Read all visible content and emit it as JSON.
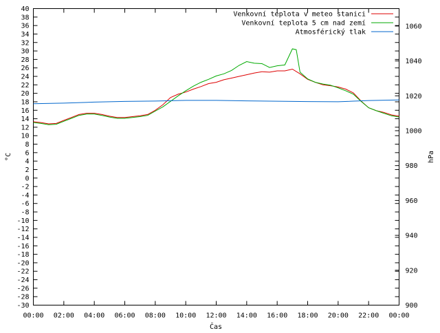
{
  "chart_data": {
    "type": "line",
    "title": "",
    "xlabel": "Čas",
    "ylabel": "°C",
    "y2label": "hPa",
    "xlim": [
      0,
      24
    ],
    "ylim": [
      -30,
      40
    ],
    "y2lim": [
      900,
      1070
    ],
    "x_ticks": [
      "00:00",
      "02:00",
      "04:00",
      "06:00",
      "08:00",
      "10:00",
      "12:00",
      "14:00",
      "16:00",
      "18:00",
      "20:00",
      "22:00",
      "00:00"
    ],
    "y_ticks": [
      40,
      38,
      36,
      34,
      32,
      30,
      28,
      26,
      24,
      22,
      20,
      18,
      16,
      14,
      12,
      10,
      8,
      6,
      4,
      2,
      0,
      -2,
      -4,
      -6,
      -8,
      -10,
      -12,
      -14,
      -16,
      -18,
      -20,
      -22,
      -24,
      -26,
      -28,
      -30
    ],
    "y2_ticks": [
      1060,
      1040,
      1020,
      1000,
      980,
      960,
      940,
      920,
      900
    ],
    "grid": false,
    "legend_position": "top-right",
    "series": [
      {
        "name": "Venkovní teplota v meteo stanici",
        "color": "#dd0000",
        "axis": "left",
        "x": [
          0,
          0.5,
          1,
          1.5,
          2,
          2.5,
          3,
          3.5,
          4,
          4.5,
          5,
          5.5,
          6,
          6.5,
          7,
          7.5,
          8,
          8.5,
          9,
          9.5,
          10,
          10.5,
          11,
          11.5,
          12,
          12.5,
          13,
          13.5,
          14,
          14.5,
          15,
          15.5,
          16,
          16.5,
          17,
          17.5,
          18,
          18.5,
          19,
          19.5,
          20,
          20.5,
          21,
          21.5,
          22,
          22.5,
          23,
          23.5,
          24
        ],
        "values": [
          13.3,
          13.1,
          12.8,
          12.9,
          13.6,
          14.3,
          15.0,
          15.3,
          15.3,
          15.0,
          14.6,
          14.3,
          14.3,
          14.5,
          14.7,
          15.0,
          16.0,
          17.3,
          19.0,
          19.8,
          20.3,
          21.0,
          21.6,
          22.3,
          22.6,
          23.2,
          23.6,
          24.0,
          24.4,
          24.8,
          25.1,
          25.0,
          25.3,
          25.3,
          25.7,
          24.6,
          23.3,
          22.6,
          22.0,
          21.8,
          21.5,
          21.0,
          20.1,
          18.2,
          16.6,
          15.9,
          15.5,
          14.9,
          14.6
        ]
      },
      {
        "name": "Venkovní teplota 5 cm nad zemí",
        "color": "#00aa00",
        "axis": "left",
        "x": [
          0,
          0.5,
          1,
          1.5,
          2,
          2.5,
          3,
          3.5,
          4,
          4.5,
          5,
          5.5,
          6,
          6.5,
          7,
          7.5,
          8,
          8.5,
          9,
          9.5,
          10,
          10.5,
          11,
          11.5,
          12,
          12.5,
          13,
          13.5,
          14,
          14.5,
          15,
          15.5,
          16,
          16.5,
          17,
          17.25,
          17.5,
          18,
          18.5,
          19,
          19.5,
          20,
          20.5,
          21,
          21.5,
          22,
          22.5,
          23,
          23.5,
          24
        ],
        "values": [
          13.1,
          12.9,
          12.6,
          12.7,
          13.4,
          14.1,
          14.8,
          15.1,
          15.1,
          14.8,
          14.4,
          14.1,
          14.1,
          14.3,
          14.5,
          14.8,
          15.8,
          16.8,
          18.1,
          19.4,
          20.6,
          21.7,
          22.6,
          23.3,
          24.1,
          24.6,
          25.4,
          26.6,
          27.5,
          27.1,
          27.0,
          26.1,
          26.5,
          26.7,
          30.5,
          30.3,
          25.0,
          23.4,
          22.6,
          22.2,
          21.9,
          21.3,
          20.6,
          19.8,
          18.1,
          16.6,
          15.9,
          15.3,
          14.7,
          14.4
        ]
      },
      {
        "name": "Atmosférický tlak",
        "color": "#0066cc",
        "axis": "right",
        "x": [
          0,
          2,
          4,
          6,
          8,
          10,
          12,
          14,
          16,
          18,
          20,
          22,
          24
        ],
        "values": [
          1015.5,
          1015.8,
          1016.4,
          1016.8,
          1017.0,
          1017.4,
          1017.4,
          1017.1,
          1016.9,
          1016.7,
          1016.6,
          1017.3,
          1017.6
        ]
      }
    ]
  }
}
